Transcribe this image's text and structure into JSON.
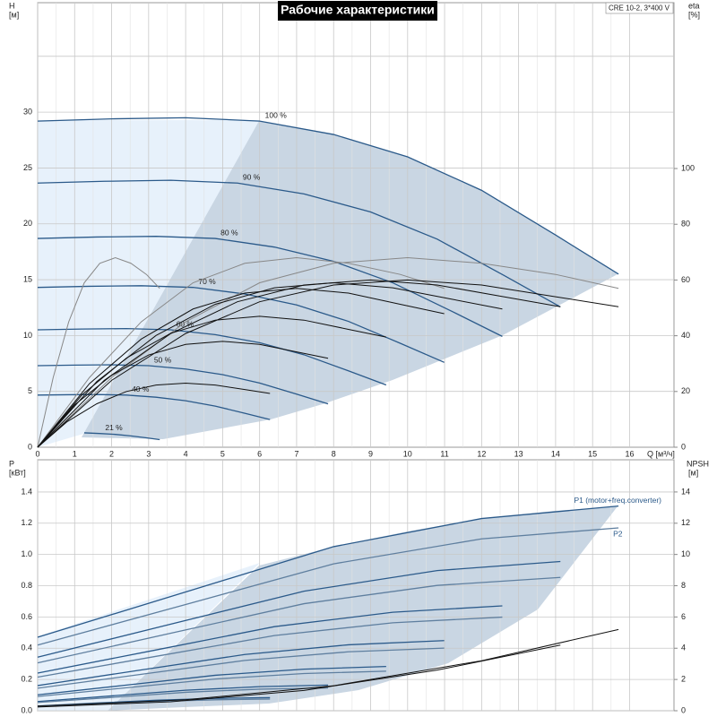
{
  "chart_data": [
    {
      "type": "line",
      "title": "Рабочие характеристики",
      "model": "CRE 10-2, 3*400 V",
      "ylabel": "H",
      "yunit": "[м]",
      "y2label": "eta",
      "y2unit": "[%]",
      "xlabel": "Q [м³/ч]",
      "xlim": [
        0,
        17.2
      ],
      "xticks": [
        0,
        1,
        2,
        3,
        4,
        5,
        6,
        7,
        8,
        9,
        10,
        11,
        12,
        13,
        14,
        15,
        16
      ],
      "ylim": [
        0,
        39.8
      ],
      "yticks": [
        0,
        5,
        10,
        15,
        20,
        25,
        30
      ],
      "ygrid": [
        5,
        10,
        15,
        20,
        25,
        30,
        35
      ],
      "y2lim": [
        0,
        159.5
      ],
      "y2ticks": [
        0,
        20,
        40,
        60,
        80,
        100
      ],
      "grid": true,
      "series": [
        {
          "name": "100 %",
          "color": "#2b5a8a",
          "x": [
            0,
            2,
            4,
            6,
            8,
            10,
            12,
            14,
            15.7
          ],
          "values": [
            29.2,
            29.4,
            29.5,
            29.2,
            28,
            26,
            23,
            19,
            15.5
          ]
        },
        {
          "name": "90 %",
          "color": "#2b5a8a",
          "x": [
            0,
            1.8,
            3.6,
            5.4,
            7.2,
            9,
            10.8,
            12.6,
            14.13
          ],
          "values": [
            23.65,
            23.81,
            23.9,
            23.65,
            22.68,
            21.06,
            18.63,
            15.39,
            12.56
          ]
        },
        {
          "name": "80 %",
          "color": "#2b5a8a",
          "x": [
            0,
            1.6,
            3.2,
            4.8,
            6.4,
            8,
            9.6,
            11.2,
            12.56
          ],
          "values": [
            18.69,
            18.82,
            18.88,
            18.69,
            17.92,
            16.64,
            14.72,
            12.16,
            9.92
          ]
        },
        {
          "name": "70 %",
          "color": "#2b5a8a",
          "x": [
            0,
            1.4,
            2.8,
            4.2,
            5.6,
            7,
            8.4,
            9.8,
            10.99
          ],
          "values": [
            14.31,
            14.41,
            14.46,
            14.31,
            13.72,
            12.74,
            11.27,
            9.31,
            7.6
          ]
        },
        {
          "name": "60 %",
          "color": "#2b5a8a",
          "x": [
            0,
            1.2,
            2.4,
            3.6,
            4.8,
            6,
            7.2,
            8.4,
            9.42
          ],
          "values": [
            10.51,
            10.58,
            10.62,
            10.51,
            10.08,
            9.36,
            8.28,
            6.84,
            5.58
          ]
        },
        {
          "name": "50 %",
          "color": "#2b5a8a",
          "x": [
            0,
            1,
            2,
            3,
            4,
            5,
            6,
            7,
            7.85
          ],
          "values": [
            7.3,
            7.35,
            7.38,
            7.3,
            7,
            6.5,
            5.75,
            4.75,
            3.88
          ]
        },
        {
          "name": "40 %",
          "color": "#2b5a8a",
          "x": [
            0,
            0.8,
            1.6,
            2.4,
            3.2,
            4,
            4.8,
            5.6,
            6.28
          ],
          "values": [
            4.67,
            4.7,
            4.72,
            4.67,
            4.48,
            4.16,
            3.68,
            3.04,
            2.48
          ]
        },
        {
          "name": "21 %",
          "color": "#2b5a8a",
          "x": [
            1.26,
            1.68,
            2.1,
            2.52,
            2.94,
            3.3
          ],
          "values": [
            1.29,
            1.23,
            1.15,
            1.01,
            0.84,
            0.68
          ]
        },
        {
          "axis": "y2",
          "color": "#888888",
          "x": [
            0,
            2,
            4,
            6,
            8,
            10,
            12,
            14,
            15.7
          ],
          "values": [
            0,
            25,
            45,
            59,
            66,
            68,
            66,
            62,
            57
          ]
        },
        {
          "axis": "y2",
          "color": "#888888",
          "x": [
            0,
            1.4,
            2.8,
            4.2,
            5.6,
            7,
            8.4,
            9.8,
            10.99
          ],
          "values": [
            0,
            25,
            45,
            59,
            66,
            68,
            66,
            62,
            57
          ]
        },
        {
          "axis": "y2",
          "color": "#888888",
          "x": [
            0,
            0.42,
            0.84,
            1.26,
            1.68,
            2.1,
            2.52,
            2.94,
            3.3
          ],
          "values": [
            0,
            25,
            45,
            59,
            66,
            68,
            66,
            62,
            57
          ]
        },
        {
          "axis": "y2",
          "color": "#111111",
          "x": [
            0,
            2,
            4,
            6,
            8,
            10,
            12,
            14,
            15.7
          ],
          "values": [
            0,
            24,
            40.8,
            52.2,
            58.2,
            60,
            58.2,
            54,
            50.4
          ]
        },
        {
          "axis": "y2",
          "color": "#111111",
          "x": [
            0,
            1.8,
            3.6,
            5.4,
            7.2,
            9,
            10.8,
            12.6,
            14.13
          ],
          "values": [
            0,
            24,
            40.8,
            52.2,
            58.2,
            60,
            58.2,
            54,
            50.4
          ]
        },
        {
          "axis": "y2",
          "color": "#111111",
          "x": [
            0,
            1.6,
            3.2,
            4.8,
            6.4,
            8,
            9.6,
            11.2,
            12.56
          ],
          "values": [
            0,
            23.6,
            40.1,
            51.3,
            57.2,
            59,
            57.2,
            53.1,
            49.6
          ]
        },
        {
          "axis": "y2",
          "color": "#111111",
          "x": [
            0,
            1.4,
            2.8,
            4.2,
            5.6,
            7,
            8.4,
            9.8,
            10.99
          ],
          "values": [
            0,
            22.8,
            38.8,
            49.6,
            55.3,
            57,
            55.3,
            51.3,
            47.9
          ]
        },
        {
          "axis": "y2",
          "color": "#111111",
          "x": [
            0,
            1.2,
            2.4,
            3.6,
            4.8,
            6,
            7.2,
            8.4,
            9.42
          ],
          "values": [
            0,
            18.8,
            32,
            40.9,
            45.6,
            47,
            45.6,
            42.3,
            39.5
          ]
        },
        {
          "axis": "y2",
          "color": "#111111",
          "x": [
            0,
            1,
            2,
            3,
            4,
            5,
            6,
            7,
            7.85
          ],
          "values": [
            0,
            15.2,
            25.8,
            33.1,
            36.9,
            38,
            36.9,
            34.2,
            31.9
          ]
        },
        {
          "axis": "y2",
          "color": "#111111",
          "x": [
            0,
            0.8,
            1.6,
            2.4,
            3.2,
            4,
            4.8,
            5.6,
            6.28
          ],
          "values": [
            0,
            9.2,
            15.6,
            20,
            22.3,
            23,
            22.3,
            20.7,
            19.3
          ]
        }
      ]
    },
    {
      "type": "line",
      "ylabel": "P",
      "yunit": "[кВт]",
      "y2label": "NPSH",
      "y2unit": "[м]",
      "xlim": [
        0,
        17.2
      ],
      "ylim": [
        0,
        1.606
      ],
      "yticks": [
        {
          "value": 0,
          "label": "0.0"
        },
        0.2,
        0.4,
        0.6,
        0.8,
        {
          "value": 1,
          "label": "1.0"
        },
        1.2,
        1.4
      ],
      "y2lim": [
        0,
        16.06
      ],
      "y2ticks": [
        0,
        2,
        4,
        6,
        8,
        10,
        12,
        14
      ],
      "grid": true,
      "series": [
        {
          "name": "P1 (motor+freq.converter)",
          "color": "#2b5a8a",
          "x": [
            0,
            4,
            8,
            12,
            15.7
          ],
          "values": [
            0.47,
            0.76,
            1.05,
            1.23,
            1.31
          ]
        },
        {
          "name": "P2",
          "color": "#5f7f9f",
          "x": [
            0,
            4,
            8,
            12,
            15.7
          ],
          "values": [
            0.42,
            0.68,
            0.94,
            1.1,
            1.17
          ]
        },
        {
          "color": "#2b5a8a",
          "x": [
            0,
            3.6,
            7.2,
            10.8,
            14.13
          ],
          "values": [
            0.343,
            0.554,
            0.765,
            0.897,
            0.955
          ]
        },
        {
          "color": "#5f7f9f",
          "x": [
            0,
            3.6,
            7.2,
            10.8,
            14.13
          ],
          "values": [
            0.306,
            0.496,
            0.685,
            0.802,
            0.853
          ]
        },
        {
          "color": "#2b5a8a",
          "x": [
            0,
            3.2,
            6.4,
            9.6,
            12.56
          ],
          "values": [
            0.241,
            0.389,
            0.538,
            0.63,
            0.671
          ]
        },
        {
          "color": "#5f7f9f",
          "x": [
            0,
            3.2,
            6.4,
            9.6,
            12.56
          ],
          "values": [
            0.215,
            0.348,
            0.481,
            0.563,
            0.599
          ]
        },
        {
          "color": "#2b5a8a",
          "x": [
            0,
            2.8,
            5.6,
            8.4,
            10.99
          ],
          "values": [
            0.161,
            0.261,
            0.36,
            0.422,
            0.449
          ]
        },
        {
          "color": "#5f7f9f",
          "x": [
            0,
            2.8,
            5.6,
            8.4,
            10.99
          ],
          "values": [
            0.144,
            0.233,
            0.322,
            0.377,
            0.401
          ]
        },
        {
          "color": "#2b5a8a",
          "x": [
            0,
            2.4,
            4.8,
            7.2,
            9.42
          ],
          "values": [
            0.102,
            0.164,
            0.227,
            0.266,
            0.283
          ]
        },
        {
          "color": "#5f7f9f",
          "x": [
            0,
            2.4,
            4.8,
            7.2,
            9.42
          ],
          "values": [
            0.091,
            0.147,
            0.203,
            0.238,
            0.253
          ]
        },
        {
          "color": "#2b5a8a",
          "x": [
            0,
            2,
            4,
            6,
            7.85
          ],
          "values": [
            0.059,
            0.095,
            0.131,
            0.154,
            0.164
          ]
        },
        {
          "color": "#5f7f9f",
          "x": [
            0,
            2,
            4,
            6,
            7.85
          ],
          "values": [
            0.053,
            0.085,
            0.118,
            0.138,
            0.146
          ]
        },
        {
          "color": "#2b5a8a",
          "x": [
            0,
            1.6,
            3.2,
            4.8,
            6.28
          ],
          "values": [
            0.03,
            0.049,
            0.067,
            0.079,
            0.084
          ]
        },
        {
          "color": "#5f7f9f",
          "x": [
            0,
            1.6,
            3.2,
            4.8,
            6.28
          ],
          "values": [
            0.027,
            0.044,
            0.06,
            0.07,
            0.075
          ]
        },
        {
          "axis": "y2",
          "color": "#111111",
          "x": [
            0,
            4,
            8,
            12,
            15.7
          ],
          "values": [
            0.3,
            0.7,
            1.6,
            3.2,
            5.2
          ]
        },
        {
          "axis": "y2",
          "color": "#111111",
          "x": [
            0,
            3.6,
            7.2,
            10.8,
            14.13
          ],
          "values": [
            0.24,
            0.57,
            1.3,
            2.6,
            4.2
          ]
        }
      ]
    }
  ]
}
